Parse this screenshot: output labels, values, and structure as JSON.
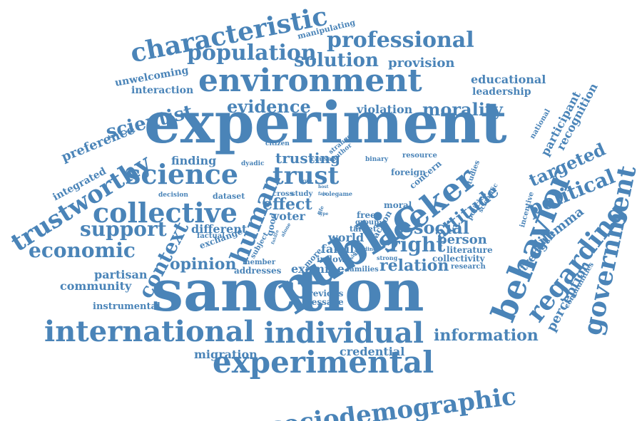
{
  "color": "#4a84b8",
  "background": "#ffffff",
  "words": [
    {
      "text": "experiment",
      "weight": 10
    },
    {
      "text": "sanction",
      "weight": 10
    },
    {
      "text": "public",
      "weight": 8
    },
    {
      "text": "environment",
      "weight": 6
    },
    {
      "text": "experimental",
      "weight": 6
    },
    {
      "text": "international",
      "weight": 6
    },
    {
      "text": "individual",
      "weight": 6
    },
    {
      "text": "characteristic",
      "weight": 5
    },
    {
      "text": "population",
      "weight": 4
    },
    {
      "text": "professional",
      "weight": 4
    },
    {
      "text": "solution",
      "weight": 3
    },
    {
      "text": "provision",
      "weight": 2
    },
    {
      "text": "manipulating",
      "weight": 1
    },
    {
      "text": "unwelcoming",
      "weight": 1
    },
    {
      "text": "interaction",
      "weight": 1
    },
    {
      "text": "educational",
      "weight": 2
    },
    {
      "text": "leadership",
      "weight": 2
    },
    {
      "text": "scientist",
      "weight": 3
    },
    {
      "text": "evidence",
      "weight": 3
    },
    {
      "text": "morality",
      "weight": 3
    },
    {
      "text": "violation",
      "weight": 2
    },
    {
      "text": "preference",
      "weight": 2
    },
    {
      "text": "trustworthy",
      "weight": 5
    },
    {
      "text": "integrated",
      "weight": 1
    },
    {
      "text": "science",
      "weight": 5
    },
    {
      "text": "finding",
      "weight": 2
    },
    {
      "text": "human",
      "weight": 5
    },
    {
      "text": "trust",
      "weight": 5
    },
    {
      "text": "trusting",
      "weight": 3
    },
    {
      "text": "seeker",
      "weight": 6
    },
    {
      "text": "behavior",
      "weight": 6
    },
    {
      "text": "regarding",
      "weight": 5
    },
    {
      "text": "government",
      "weight": 5
    },
    {
      "text": "collective",
      "weight": 5
    },
    {
      "text": "support",
      "weight": 4
    },
    {
      "text": "economic",
      "weight": 4
    },
    {
      "text": "context",
      "weight": 4
    },
    {
      "text": "opinion",
      "weight": 3
    },
    {
      "text": "effect",
      "weight": 3
    },
    {
      "text": "voter",
      "weight": 2
    },
    {
      "text": "social",
      "weight": 3
    },
    {
      "text": "attitude",
      "weight": 3
    },
    {
      "text": "right",
      "weight": 4
    },
    {
      "text": "relation",
      "weight": 3
    },
    {
      "text": "person",
      "weight": 2
    },
    {
      "text": "political",
      "weight": 4
    },
    {
      "text": "targeted",
      "weight": 3
    },
    {
      "text": "dilemma",
      "weight": 2
    },
    {
      "text": "strength",
      "weight": 2
    },
    {
      "text": "perception",
      "weight": 2
    },
    {
      "text": "information",
      "weight": 3
    },
    {
      "text": "credential",
      "weight": 2
    },
    {
      "text": "migration",
      "weight": 2
    },
    {
      "text": "sociodemographic",
      "weight": 5
    },
    {
      "text": "partisan",
      "weight": 2
    },
    {
      "text": "community",
      "weight": 2
    },
    {
      "text": "instrumental",
      "weight": 1
    },
    {
      "text": "different",
      "weight": 2
    },
    {
      "text": "exchange",
      "weight": 1
    },
    {
      "text": "factual",
      "weight": 1
    },
    {
      "text": "addresses",
      "weight": 1
    },
    {
      "text": "member",
      "weight": 1
    },
    {
      "text": "examine",
      "weight": 2
    },
    {
      "text": "previous",
      "weight": 1
    },
    {
      "text": "message",
      "weight": 1
    },
    {
      "text": "inflow",
      "weight": 1
    },
    {
      "text": "families",
      "weight": 1
    },
    {
      "text": "family",
      "weight": 2
    },
    {
      "text": "world",
      "weight": 2
    },
    {
      "text": "target",
      "weight": 1
    },
    {
      "text": "free",
      "weight": 1
    },
    {
      "text": "group",
      "weight": 1
    },
    {
      "text": "moral",
      "weight": 1
    },
    {
      "text": "action",
      "weight": 1
    },
    {
      "text": "literature",
      "weight": 1
    },
    {
      "text": "collectivity",
      "weight": 1
    },
    {
      "text": "research",
      "weight": 1
    },
    {
      "text": "policies",
      "weight": 1
    },
    {
      "text": "scientific",
      "weight": 1
    },
    {
      "text": "studies",
      "weight": 1
    },
    {
      "text": "incentive",
      "weight": 1
    },
    {
      "text": "national",
      "weight": 1
    },
    {
      "text": "participant",
      "weight": 2
    },
    {
      "text": "recognition",
      "weight": 2
    },
    {
      "text": "communities",
      "weight": 1
    },
    {
      "text": "dataset",
      "weight": 1
    },
    {
      "text": "decision",
      "weight": 1
    },
    {
      "text": "cross",
      "weight": 1
    },
    {
      "text": "study",
      "weight": 1
    },
    {
      "text": "rolegame",
      "weight": 1
    },
    {
      "text": "concern",
      "weight": 1
    },
    {
      "text": "foreign",
      "weight": 1
    },
    {
      "text": "resource",
      "weight": 1
    },
    {
      "text": "binary",
      "weight": 1
    },
    {
      "text": "causal",
      "weight": 1
    },
    {
      "text": "citizen",
      "weight": 1
    },
    {
      "text": "dyadic",
      "weight": 1
    },
    {
      "text": "stranger",
      "weight": 1
    },
    {
      "text": "author",
      "weight": 1
    },
    {
      "text": "host",
      "weight": 1
    },
    {
      "text": "fair",
      "weight": 1
    },
    {
      "text": "life",
      "weight": 1
    },
    {
      "text": "type",
      "weight": 1
    },
    {
      "text": "rule",
      "weight": 1
    },
    {
      "text": "more",
      "weight": 1
    },
    {
      "text": "subject",
      "weight": 1
    },
    {
      "text": "good",
      "weight": 1
    },
    {
      "text": "alone",
      "weight": 1
    },
    {
      "text": "strong",
      "weight": 1
    },
    {
      "text": "riding",
      "weight": 1
    },
    {
      "text": "design",
      "weight": 1
    },
    {
      "text": "future",
      "weight": 1
    },
    {
      "text": "harsh",
      "weight": 1
    }
  ]
}
